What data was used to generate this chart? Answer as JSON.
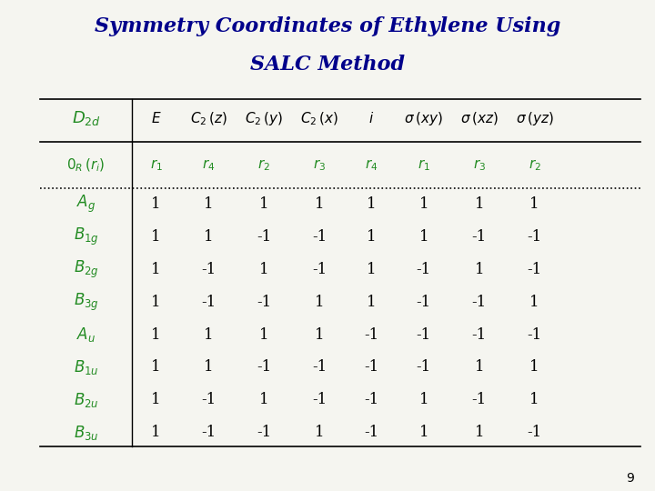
{
  "title_line1": "Symmetry Coordinates of Ethylene Using",
  "title_line2": "SALC Method",
  "title_color": "#00008B",
  "background_color": "#f5f5f0",
  "green_color": "#228B22",
  "page_number": "9",
  "data": [
    [
      1,
      1,
      1,
      1,
      1,
      1,
      1,
      1
    ],
    [
      1,
      1,
      -1,
      -1,
      1,
      1,
      -1,
      -1
    ],
    [
      1,
      -1,
      1,
      -1,
      1,
      -1,
      1,
      -1
    ],
    [
      1,
      -1,
      -1,
      1,
      1,
      -1,
      -1,
      1
    ],
    [
      1,
      1,
      1,
      1,
      -1,
      -1,
      -1,
      -1
    ],
    [
      1,
      1,
      -1,
      -1,
      -1,
      -1,
      1,
      1
    ],
    [
      1,
      -1,
      1,
      -1,
      -1,
      1,
      -1,
      1
    ],
    [
      1,
      -1,
      -1,
      1,
      -1,
      1,
      1,
      -1
    ]
  ]
}
